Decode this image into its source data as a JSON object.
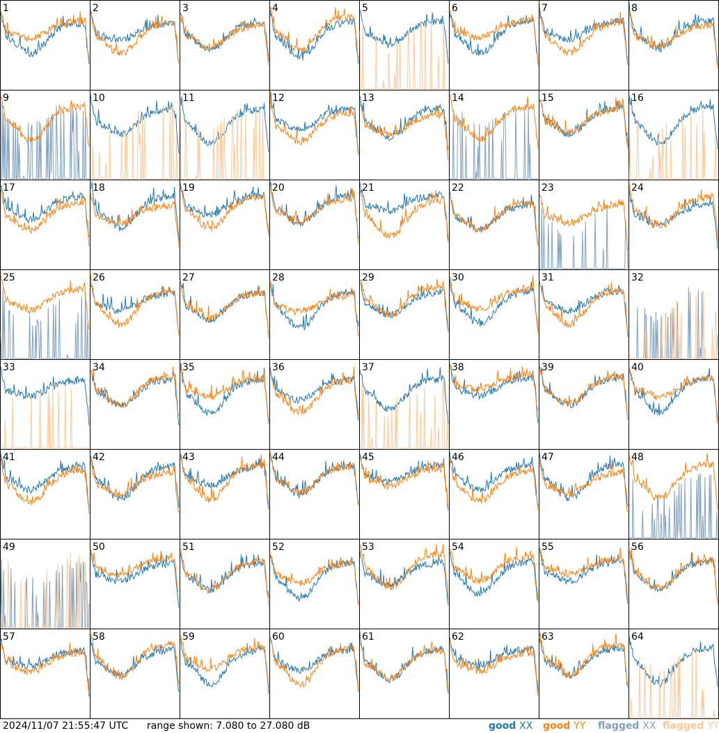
{
  "footer": {
    "timestamp": "2024/11/07 21:55:47 UTC",
    "range_text": "range shown: 7.080 to 27.080 dB"
  },
  "legend": [
    {
      "key": "good_xx",
      "word": "good",
      "pol": "XX",
      "color": "#1f77b4"
    },
    {
      "key": "good_yy",
      "word": "good",
      "pol": "YY",
      "color": "#ff7f0e"
    },
    {
      "key": "flagged_xx",
      "word": "flagged",
      "pol": "XX",
      "color": "#7f9fbf"
    },
    {
      "key": "flagged_yy",
      "word": "flagged",
      "pol": "YY",
      "color": "#ffc896"
    }
  ],
  "chart_data": {
    "type": "line",
    "grid": "8x8 small multiples",
    "ylim": [
      7.08,
      27.08
    ],
    "yunit": "dB",
    "panels": [
      {
        "label": "1",
        "xx": "good",
        "yy": "good"
      },
      {
        "label": "2",
        "xx": "good",
        "yy": "good"
      },
      {
        "label": "3",
        "xx": "good",
        "yy": "good"
      },
      {
        "label": "4",
        "xx": "good",
        "yy": "good"
      },
      {
        "label": "5",
        "xx": "good",
        "yy": "flagged"
      },
      {
        "label": "6",
        "xx": "good",
        "yy": "good"
      },
      {
        "label": "7",
        "xx": "good",
        "yy": "good"
      },
      {
        "label": "8",
        "xx": "good",
        "yy": "good"
      },
      {
        "label": "9",
        "xx": "flagged",
        "yy": "good"
      },
      {
        "label": "10",
        "xx": "good",
        "yy": "flagged"
      },
      {
        "label": "11",
        "xx": "good",
        "yy": "flagged"
      },
      {
        "label": "12",
        "xx": "good",
        "yy": "good"
      },
      {
        "label": "13",
        "xx": "good",
        "yy": "good"
      },
      {
        "label": "14",
        "xx": "flagged",
        "yy": "good"
      },
      {
        "label": "15",
        "xx": "good",
        "yy": "good"
      },
      {
        "label": "16",
        "xx": "good",
        "yy": "flagged"
      },
      {
        "label": "17",
        "xx": "good",
        "yy": "good"
      },
      {
        "label": "18",
        "xx": "good",
        "yy": "good"
      },
      {
        "label": "19",
        "xx": "good",
        "yy": "good"
      },
      {
        "label": "20",
        "xx": "good",
        "yy": "good"
      },
      {
        "label": "21",
        "xx": "good",
        "yy": "good"
      },
      {
        "label": "22",
        "xx": "good",
        "yy": "good"
      },
      {
        "label": "23",
        "xx": "flagged",
        "yy": "good"
      },
      {
        "label": "24",
        "xx": "good",
        "yy": "good"
      },
      {
        "label": "25",
        "xx": "flagged",
        "yy": "good"
      },
      {
        "label": "26",
        "xx": "good",
        "yy": "good"
      },
      {
        "label": "27",
        "xx": "good",
        "yy": "good"
      },
      {
        "label": "28",
        "xx": "good",
        "yy": "good"
      },
      {
        "label": "29",
        "xx": "good",
        "yy": "good"
      },
      {
        "label": "30",
        "xx": "good",
        "yy": "good"
      },
      {
        "label": "31",
        "xx": "good",
        "yy": "good"
      },
      {
        "label": "32",
        "xx": "flagged",
        "yy": "flagged"
      },
      {
        "label": "33",
        "xx": "good",
        "yy": "flagged"
      },
      {
        "label": "34",
        "xx": "good",
        "yy": "good"
      },
      {
        "label": "35",
        "xx": "good",
        "yy": "good"
      },
      {
        "label": "36",
        "xx": "good",
        "yy": "good"
      },
      {
        "label": "37",
        "xx": "good",
        "yy": "flagged"
      },
      {
        "label": "38",
        "xx": "good",
        "yy": "good"
      },
      {
        "label": "39",
        "xx": "good",
        "yy": "good"
      },
      {
        "label": "40",
        "xx": "good",
        "yy": "good"
      },
      {
        "label": "41",
        "xx": "good",
        "yy": "good"
      },
      {
        "label": "42",
        "xx": "good",
        "yy": "good"
      },
      {
        "label": "43",
        "xx": "good",
        "yy": "good"
      },
      {
        "label": "44",
        "xx": "good",
        "yy": "good"
      },
      {
        "label": "45",
        "xx": "good",
        "yy": "good"
      },
      {
        "label": "46",
        "xx": "good",
        "yy": "good"
      },
      {
        "label": "47",
        "xx": "good",
        "yy": "good"
      },
      {
        "label": "48",
        "xx": "flagged",
        "yy": "good"
      },
      {
        "label": "49",
        "xx": "flagged",
        "yy": "flagged"
      },
      {
        "label": "50",
        "xx": "good",
        "yy": "good"
      },
      {
        "label": "51",
        "xx": "good",
        "yy": "good"
      },
      {
        "label": "52",
        "xx": "good",
        "yy": "good"
      },
      {
        "label": "53",
        "xx": "good",
        "yy": "good"
      },
      {
        "label": "54",
        "xx": "good",
        "yy": "good"
      },
      {
        "label": "55",
        "xx": "good",
        "yy": "good"
      },
      {
        "label": "56",
        "xx": "good",
        "yy": "good"
      },
      {
        "label": "57",
        "xx": "good",
        "yy": "good"
      },
      {
        "label": "58",
        "xx": "good",
        "yy": "good"
      },
      {
        "label": "59",
        "xx": "good",
        "yy": "good"
      },
      {
        "label": "60",
        "xx": "good",
        "yy": "good"
      },
      {
        "label": "61",
        "xx": "good",
        "yy": "good"
      },
      {
        "label": "62",
        "xx": "good",
        "yy": "good"
      },
      {
        "label": "63",
        "xx": "good",
        "yy": "good"
      },
      {
        "label": "64",
        "xx": "good",
        "yy": "flagged"
      }
    ]
  }
}
